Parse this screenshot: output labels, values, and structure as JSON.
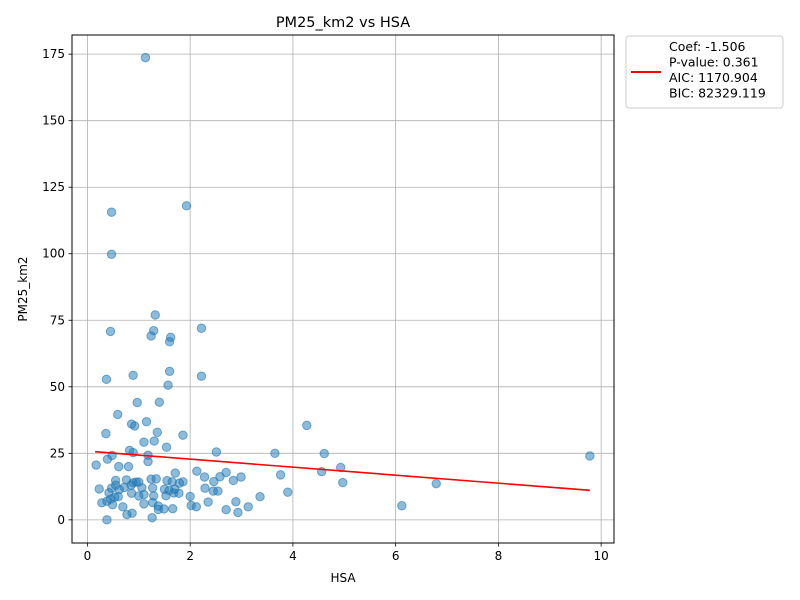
{
  "chart_data": {
    "type": "scatter",
    "title": "PM25_km2 vs HSA",
    "xlabel": "HSA",
    "ylabel": "PM25_km2",
    "xlim": [
      -0.3,
      10.25
    ],
    "ylim": [
      -8.7,
      182.2
    ],
    "xticks": [
      0,
      2,
      4,
      6,
      8,
      10
    ],
    "yticks": [
      0,
      25,
      50,
      75,
      100,
      125,
      150,
      175
    ],
    "grid": true,
    "legend_position": "outside-top-right",
    "point_color": "#1f77b4",
    "line_color": "#ff0000",
    "legend_lines": [
      "Coef: -1.506",
      "P-value: 0.361",
      "AIC: 1170.904",
      "BIC: 82329.119"
    ],
    "regression_line": {
      "x": [
        0.15,
        9.78
      ],
      "y": [
        25.6,
        11.1
      ]
    },
    "points": [
      [
        1.13,
        173.7
      ],
      [
        0.47,
        115.6
      ],
      [
        1.93,
        118.0
      ],
      [
        0.47,
        99.8
      ],
      [
        1.32,
        77.0
      ],
      [
        0.45,
        70.8
      ],
      [
        1.29,
        71.1
      ],
      [
        1.24,
        69.1
      ],
      [
        1.62,
        68.6
      ],
      [
        1.6,
        66.9
      ],
      [
        2.22,
        72.0
      ],
      [
        1.6,
        55.8
      ],
      [
        0.37,
        52.8
      ],
      [
        0.89,
        54.3
      ],
      [
        2.22,
        54.0
      ],
      [
        1.57,
        50.6
      ],
      [
        0.97,
        44.1
      ],
      [
        1.4,
        44.2
      ],
      [
        0.59,
        39.6
      ],
      [
        1.15,
        36.9
      ],
      [
        0.86,
        36.0
      ],
      [
        0.92,
        35.3
      ],
      [
        4.27,
        35.5
      ],
      [
        0.36,
        32.4
      ],
      [
        1.36,
        32.9
      ],
      [
        1.86,
        31.8
      ],
      [
        1.3,
        29.6
      ],
      [
        1.1,
        29.2
      ],
      [
        1.54,
        27.3
      ],
      [
        0.82,
        26.1
      ],
      [
        0.89,
        25.3
      ],
      [
        1.18,
        24.3
      ],
      [
        2.51,
        25.5
      ],
      [
        3.65,
        25.0
      ],
      [
        4.61,
        24.9
      ],
      [
        9.78,
        24.0
      ],
      [
        0.39,
        22.8
      ],
      [
        0.48,
        24.2
      ],
      [
        1.18,
        21.9
      ],
      [
        0.17,
        20.6
      ],
      [
        0.61,
        20.0
      ],
      [
        0.8,
        20.0
      ],
      [
        4.93,
        19.7
      ],
      [
        4.56,
        18.1
      ],
      [
        2.13,
        18.3
      ],
      [
        1.71,
        17.6
      ],
      [
        2.7,
        17.8
      ],
      [
        3.76,
        16.9
      ],
      [
        2.28,
        16.1
      ],
      [
        2.58,
        16.2
      ],
      [
        2.99,
        16.1
      ],
      [
        0.55,
        14.8
      ],
      [
        0.76,
        15.0
      ],
      [
        1.24,
        15.3
      ],
      [
        1.34,
        15.4
      ],
      [
        1.55,
        14.7
      ],
      [
        1.65,
        14.3
      ],
      [
        1.79,
        13.8
      ],
      [
        1.86,
        14.3
      ],
      [
        2.46,
        14.4
      ],
      [
        2.84,
        14.8
      ],
      [
        4.97,
        14.0
      ],
      [
        6.79,
        13.6
      ],
      [
        0.89,
        13.9
      ],
      [
        0.95,
        14.2
      ],
      [
        1.0,
        14.2
      ],
      [
        0.55,
        13.0
      ],
      [
        0.47,
        11.9
      ],
      [
        0.62,
        11.4
      ],
      [
        0.72,
        12.2
      ],
      [
        0.23,
        11.6
      ],
      [
        0.85,
        13.0
      ],
      [
        1.06,
        12.1
      ],
      [
        1.27,
        12.0
      ],
      [
        1.5,
        11.5
      ],
      [
        1.59,
        11.0
      ],
      [
        1.7,
        11.5
      ],
      [
        2.29,
        11.9
      ],
      [
        2.45,
        10.8
      ],
      [
        2.54,
        10.8
      ],
      [
        0.42,
        10.2
      ],
      [
        0.86,
        10.0
      ],
      [
        1.0,
        9.0
      ],
      [
        1.1,
        9.5
      ],
      [
        1.29,
        9.0
      ],
      [
        1.53,
        9.1
      ],
      [
        1.68,
        10.1
      ],
      [
        1.78,
        10.0
      ],
      [
        2.0,
        8.8
      ],
      [
        3.36,
        8.7
      ],
      [
        3.9,
        10.4
      ],
      [
        0.6,
        8.7
      ],
      [
        0.53,
        8.5
      ],
      [
        0.28,
        6.4
      ],
      [
        0.38,
        7.0
      ],
      [
        0.45,
        7.8
      ],
      [
        0.49,
        5.7
      ],
      [
        1.1,
        6.0
      ],
      [
        1.27,
        6.5
      ],
      [
        1.38,
        5.2
      ],
      [
        2.02,
        5.4
      ],
      [
        2.12,
        4.9
      ],
      [
        2.35,
        6.7
      ],
      [
        2.89,
        6.8
      ],
      [
        3.13,
        4.9
      ],
      [
        6.12,
        5.3
      ],
      [
        0.69,
        4.9
      ],
      [
        1.38,
        3.9
      ],
      [
        1.49,
        4.1
      ],
      [
        1.66,
        4.2
      ],
      [
        2.7,
        3.8
      ],
      [
        2.93,
        2.8
      ],
      [
        0.77,
        2.0
      ],
      [
        0.87,
        2.5
      ],
      [
        1.26,
        0.8
      ],
      [
        0.38,
        0.0
      ]
    ]
  }
}
